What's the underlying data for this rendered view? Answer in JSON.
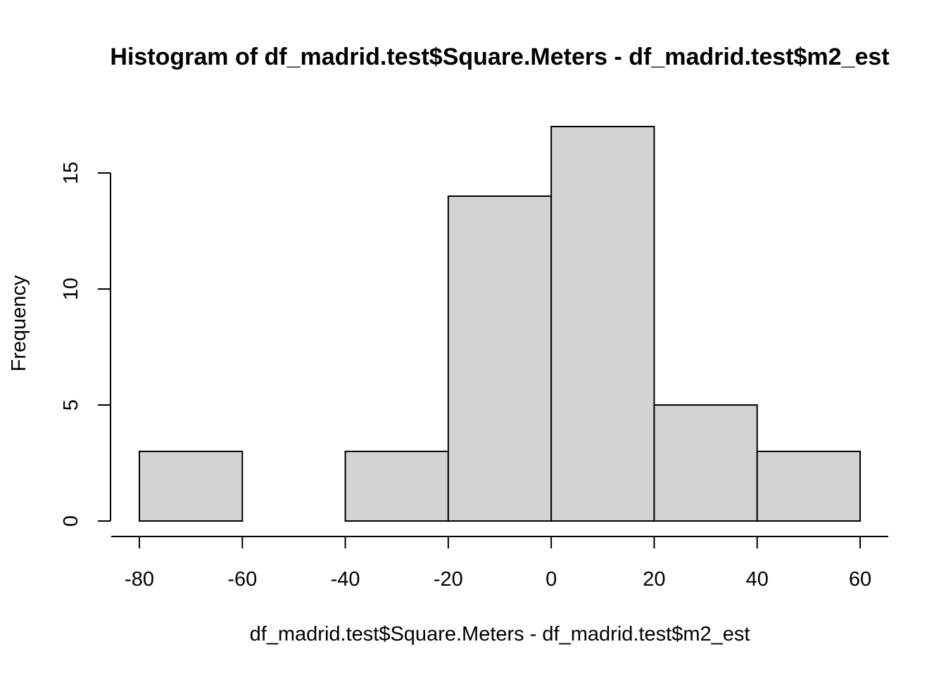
{
  "chart_data": {
    "type": "bar",
    "title": "Histogram of df_madrid.test$Square.Meters - df_madrid.test$m2_est",
    "xlabel": "df_madrid.test$Square.Meters - df_madrid.test$m2_est",
    "ylabel": "Frequency",
    "bins": [
      {
        "from": -80,
        "to": -60,
        "count": 3
      },
      {
        "from": -60,
        "to": -40,
        "count": 0
      },
      {
        "from": -40,
        "to": -20,
        "count": 3
      },
      {
        "from": -20,
        "to": 0,
        "count": 14
      },
      {
        "from": 0,
        "to": 20,
        "count": 17
      },
      {
        "from": 20,
        "to": 40,
        "count": 5
      },
      {
        "from": 40,
        "to": 60,
        "count": 3
      }
    ],
    "xlim": [
      -80,
      60
    ],
    "ylim": [
      0,
      17
    ],
    "x_ticks": [
      -80,
      -60,
      -40,
      -20,
      0,
      20,
      40,
      60
    ],
    "y_ticks": [
      0,
      5,
      10,
      15
    ],
    "bar_color": "#d3d3d3",
    "grid": false,
    "legend": "none"
  }
}
